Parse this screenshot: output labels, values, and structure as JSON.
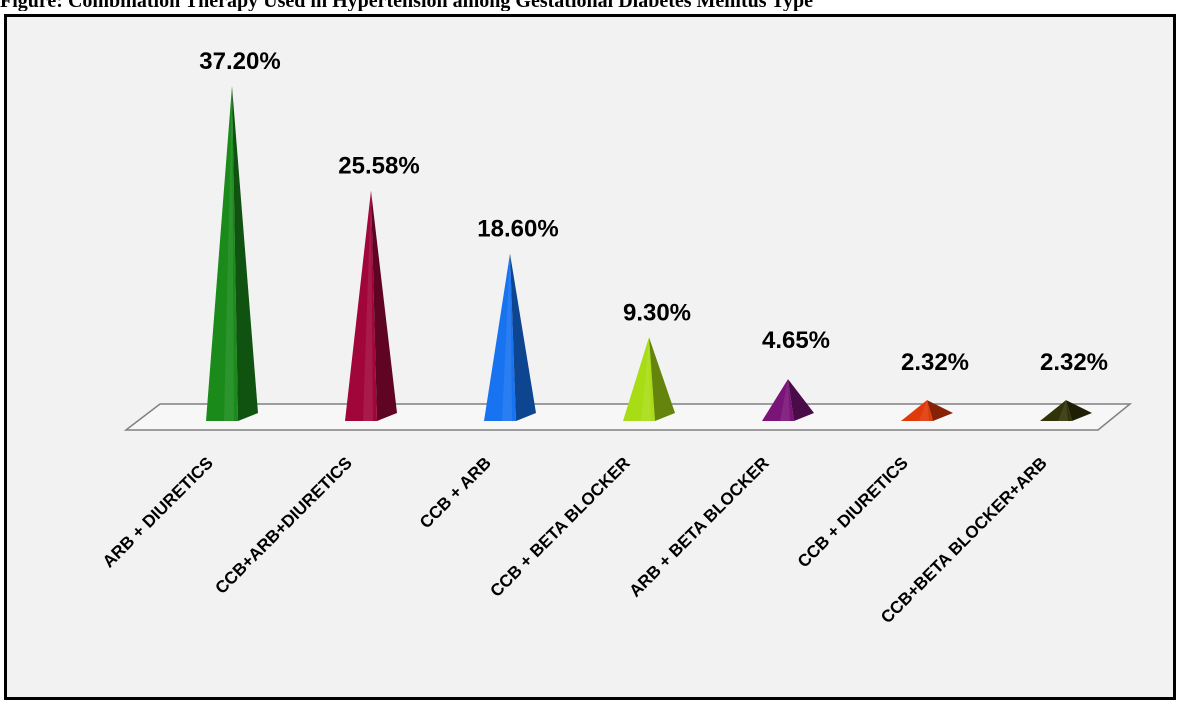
{
  "header_text": "Figure: Combination Therapy Used in Hypertension among Gestational Diabetes Mellitus Type",
  "chart_data": {
    "type": "bar",
    "categories": [
      "ARB + DIURETICS",
      "CCB+ARB+DIURETICS",
      "CCB + ARB",
      "CCB + BETA BLOCKER",
      "ARB + BETA BLOCKER",
      "CCB + DIURETICS",
      "CCB+BETA BLOCKER+ARB"
    ],
    "values": [
      37.2,
      25.58,
      18.6,
      9.3,
      4.65,
      2.32,
      2.32
    ],
    "data_labels": [
      "37.20%",
      "25.58%",
      "18.60%",
      "9.30%",
      "4.65%",
      "2.32%",
      "2.32%"
    ],
    "colors": [
      "#1a8a1a",
      "#a0063a",
      "#1873f0",
      "#a8dc14",
      "#7a1478",
      "#e03a0a",
      "#33330a"
    ],
    "shape": "pyramid",
    "grid": false,
    "legend": "none"
  }
}
